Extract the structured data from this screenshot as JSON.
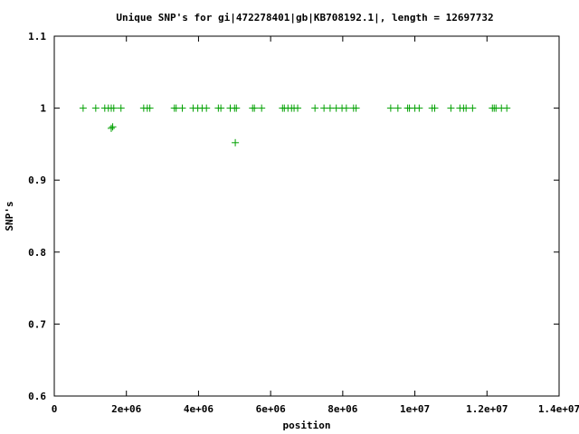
{
  "chart_data": {
    "type": "scatter",
    "title": "Unique SNP's for gi|472278401|gb|KB708192.1|, length = 12697732",
    "xlabel": "position",
    "ylabel": "SNP's",
    "xlim": [
      0,
      14000000
    ],
    "ylim": [
      0.6,
      1.1
    ],
    "xticks": [
      {
        "value": 0,
        "label": "0"
      },
      {
        "value": 2000000,
        "label": "2e+06"
      },
      {
        "value": 4000000,
        "label": "4e+06"
      },
      {
        "value": 6000000,
        "label": "6e+06"
      },
      {
        "value": 8000000,
        "label": "8e+06"
      },
      {
        "value": 10000000,
        "label": "1e+07"
      },
      {
        "value": 12000000,
        "label": "1.2e+07"
      },
      {
        "value": 14000000,
        "label": "1.4e+07"
      }
    ],
    "yticks": [
      {
        "value": 0.6,
        "label": "0.6"
      },
      {
        "value": 0.7,
        "label": "0.7"
      },
      {
        "value": 0.8,
        "label": "0.8"
      },
      {
        "value": 0.9,
        "label": "0.9"
      },
      {
        "value": 1.0,
        "label": "1"
      },
      {
        "value": 1.1,
        "label": "1.1"
      }
    ],
    "grid": false,
    "marker": "+",
    "series": [
      {
        "color": "#00a000",
        "x": [
          800000,
          1150000,
          1400000,
          1500000,
          1580000,
          1650000,
          1850000,
          2480000,
          2580000,
          2650000,
          3330000,
          3380000,
          3550000,
          3850000,
          3980000,
          4100000,
          4220000,
          4550000,
          4620000,
          4880000,
          5000000,
          5050000,
          5500000,
          5550000,
          5750000,
          6330000,
          6380000,
          6480000,
          6580000,
          6650000,
          6750000,
          7230000,
          7480000,
          7650000,
          7820000,
          7980000,
          8100000,
          8300000,
          8370000,
          9330000,
          9530000,
          9800000,
          9850000,
          10000000,
          10120000,
          10480000,
          10550000,
          11000000,
          11250000,
          11350000,
          11420000,
          11600000,
          12150000,
          12200000,
          12250000,
          12400000,
          12550000,
          1580000,
          1620000,
          5020000
        ],
        "y": [
          1,
          1,
          1,
          1,
          1,
          1,
          1,
          1,
          1,
          1,
          1,
          1,
          1,
          1,
          1,
          1,
          1,
          1,
          1,
          1,
          1,
          1,
          1,
          1,
          1,
          1,
          1,
          1,
          1,
          1,
          1,
          1,
          1,
          1,
          1,
          1,
          1,
          1,
          1,
          1,
          1,
          1,
          1,
          1,
          1,
          1,
          1,
          1,
          1,
          1,
          1,
          1,
          1,
          1,
          1,
          1,
          1,
          0.972,
          0.974,
          0.952
        ]
      }
    ]
  }
}
